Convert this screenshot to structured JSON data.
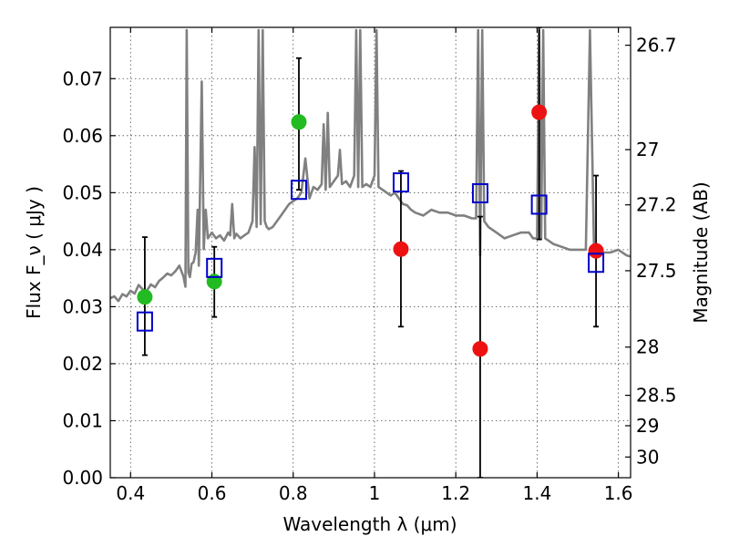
{
  "chart_data": {
    "type": "scatter",
    "xlabel": "Wavelength  λ (μm)",
    "ylabel": "Flux  F_ν  ( μJy )",
    "ylabel_right": "Magnitude (AB)",
    "xlim": [
      0.35,
      1.63
    ],
    "ylim": [
      0.0,
      0.079
    ],
    "grid": true,
    "x_ticks": [
      {
        "value": 0.4,
        "label": "0.4"
      },
      {
        "value": 0.6,
        "label": "0.6"
      },
      {
        "value": 0.8,
        "label": "0.8"
      },
      {
        "value": 1.0,
        "label": "1"
      },
      {
        "value": 1.2,
        "label": "1.2"
      },
      {
        "value": 1.4,
        "label": "1.4"
      },
      {
        "value": 1.6,
        "label": "1.6"
      }
    ],
    "y_ticks": [
      {
        "value": 0.0,
        "label": "0.00"
      },
      {
        "value": 0.01,
        "label": "0.01"
      },
      {
        "value": 0.02,
        "label": "0.02"
      },
      {
        "value": 0.03,
        "label": "0.03"
      },
      {
        "value": 0.04,
        "label": "0.04"
      },
      {
        "value": 0.05,
        "label": "0.05"
      },
      {
        "value": 0.06,
        "label": "0.06"
      },
      {
        "value": 0.07,
        "label": "0.07"
      }
    ],
    "y_ticks_right": [
      {
        "value": 26.7,
        "label": "26.7"
      },
      {
        "value": 27.0,
        "label": "27"
      },
      {
        "value": 27.2,
        "label": "27.2"
      },
      {
        "value": 27.5,
        "label": "27.5"
      },
      {
        "value": 28.0,
        "label": "28"
      },
      {
        "value": 28.5,
        "label": "28.5"
      },
      {
        "value": 29.0,
        "label": "29"
      },
      {
        "value": 30.0,
        "label": "30"
      }
    ],
    "series": [
      {
        "marker": "circle",
        "color": "#22bb22",
        "points": [
          {
            "x": 0.435,
            "y": 0.0317,
            "yerr_low": 0.0215,
            "yerr_high": 0.0422
          },
          {
            "x": 0.606,
            "y": 0.0344,
            "yerr_low": 0.0282,
            "yerr_high": 0.0405
          },
          {
            "x": 0.814,
            "y": 0.0624,
            "yerr_low": 0.0505,
            "yerr_high": 0.0736
          }
        ]
      },
      {
        "marker": "circle",
        "color": "#ee1111",
        "points": [
          {
            "x": 1.065,
            "y": 0.0401,
            "yerr_low": 0.0265,
            "yerr_high": 0.0538
          },
          {
            "x": 1.26,
            "y": 0.0226,
            "yerr_low": 0.0,
            "yerr_high": 0.0458
          },
          {
            "x": 1.405,
            "y": 0.0641,
            "yerr_low": 0.0418,
            "yerr_high": 0.079
          },
          {
            "x": 1.545,
            "y": 0.0398,
            "yerr_low": 0.0265,
            "yerr_high": 0.053
          }
        ]
      },
      {
        "marker": "open-square",
        "color": "#0000cc",
        "points": [
          {
            "x": 0.435,
            "y": 0.0274
          },
          {
            "x": 0.606,
            "y": 0.0368
          },
          {
            "x": 0.814,
            "y": 0.0505
          },
          {
            "x": 1.065,
            "y": 0.0518
          },
          {
            "x": 1.26,
            "y": 0.0499
          },
          {
            "x": 1.405,
            "y": 0.0479
          },
          {
            "x": 1.545,
            "y": 0.0377
          }
        ]
      }
    ],
    "model_spectrum": {
      "color": "#808080",
      "x": [
        0.35,
        0.36,
        0.37,
        0.38,
        0.39,
        0.4,
        0.41,
        0.42,
        0.43,
        0.44,
        0.45,
        0.46,
        0.47,
        0.48,
        0.49,
        0.5,
        0.51,
        0.52,
        0.53,
        0.535,
        0.538,
        0.542,
        0.546,
        0.55,
        0.555,
        0.56,
        0.565,
        0.568,
        0.575,
        0.58,
        0.585,
        0.59,
        0.6,
        0.61,
        0.62,
        0.63,
        0.64,
        0.645,
        0.65,
        0.655,
        0.66,
        0.67,
        0.68,
        0.69,
        0.7,
        0.705,
        0.71,
        0.715,
        0.72,
        0.725,
        0.73,
        0.735,
        0.74,
        0.75,
        0.76,
        0.77,
        0.78,
        0.79,
        0.8,
        0.81,
        0.82,
        0.83,
        0.84,
        0.85,
        0.86,
        0.87,
        0.875,
        0.88,
        0.885,
        0.89,
        0.9,
        0.91,
        0.915,
        0.92,
        0.93,
        0.94,
        0.95,
        0.955,
        0.96,
        0.965,
        0.97,
        0.98,
        0.99,
        1.0,
        1.005,
        1.01,
        1.02,
        1.03,
        1.04,
        1.05,
        1.06,
        1.07,
        1.08,
        1.09,
        1.1,
        1.12,
        1.14,
        1.16,
        1.18,
        1.2,
        1.22,
        1.24,
        1.25,
        1.255,
        1.26,
        1.265,
        1.27,
        1.28,
        1.3,
        1.32,
        1.34,
        1.36,
        1.38,
        1.39,
        1.4,
        1.405,
        1.41,
        1.415,
        1.42,
        1.44,
        1.46,
        1.48,
        1.5,
        1.52,
        1.53,
        1.54,
        1.55,
        1.56,
        1.58,
        1.6,
        1.62,
        1.63
      ],
      "y": [
        0.0315,
        0.0318,
        0.031,
        0.0322,
        0.0318,
        0.0328,
        0.0323,
        0.0338,
        0.033,
        0.0328,
        0.0339,
        0.0334,
        0.0345,
        0.0351,
        0.0358,
        0.0355,
        0.0362,
        0.0372,
        0.0353,
        0.0335,
        0.0785,
        0.036,
        0.0352,
        0.0375,
        0.0378,
        0.0395,
        0.047,
        0.0372,
        0.0695,
        0.0401,
        0.047,
        0.042,
        0.043,
        0.042,
        0.0425,
        0.0416,
        0.043,
        0.0425,
        0.048,
        0.042,
        0.0428,
        0.042,
        0.0425,
        0.043,
        0.045,
        0.058,
        0.044,
        0.0785,
        0.0445,
        0.0785,
        0.045,
        0.044,
        0.0436,
        0.044,
        0.045,
        0.046,
        0.047,
        0.048,
        0.0485,
        0.049,
        0.05,
        0.056,
        0.049,
        0.051,
        0.0505,
        0.0515,
        0.062,
        0.0505,
        0.064,
        0.051,
        0.052,
        0.053,
        0.0575,
        0.0515,
        0.052,
        0.051,
        0.053,
        0.0785,
        0.051,
        0.0785,
        0.051,
        0.0515,
        0.051,
        0.053,
        0.0785,
        0.051,
        0.0505,
        0.05,
        0.0495,
        0.05,
        0.049,
        0.048,
        0.0478,
        0.047,
        0.0465,
        0.046,
        0.047,
        0.0465,
        0.0465,
        0.046,
        0.046,
        0.0455,
        0.0455,
        0.0785,
        0.039,
        0.0785,
        0.045,
        0.044,
        0.043,
        0.042,
        0.0425,
        0.043,
        0.043,
        0.042,
        0.042,
        0.0785,
        0.042,
        0.0785,
        0.042,
        0.041,
        0.0405,
        0.04,
        0.04,
        0.04,
        0.0785,
        0.04,
        0.0395,
        0.0395,
        0.0395,
        0.04,
        0.039,
        0.0388
      ]
    }
  }
}
